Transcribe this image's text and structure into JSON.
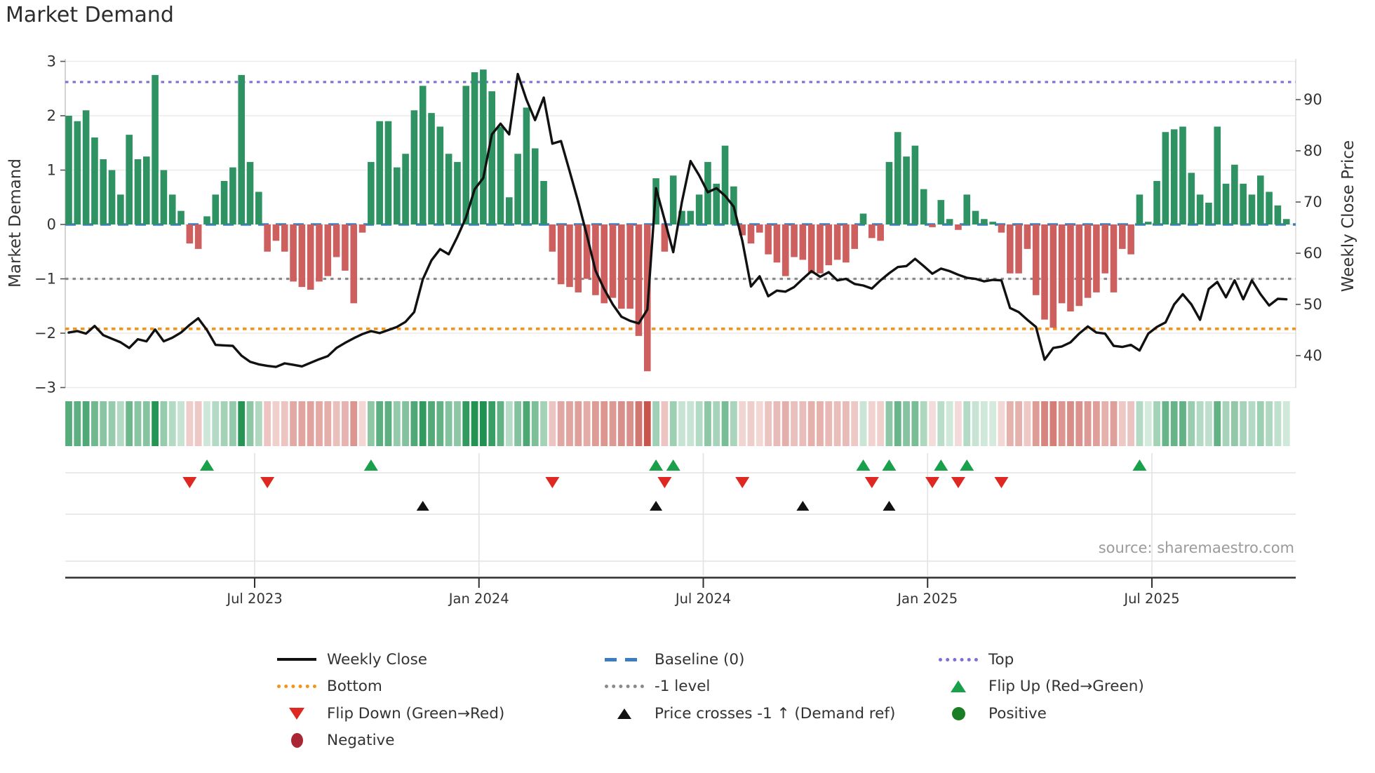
{
  "title": "Market Demand",
  "source": "source: sharemaestro.com",
  "axes": {
    "left_label": "Market Demand",
    "right_label": "Weekly Close Price",
    "left_ticks": [
      "3",
      "2",
      "1",
      "0",
      "−1",
      "−2",
      "−3"
    ],
    "right_ticks": [
      "90",
      "80",
      "70",
      "60",
      "50",
      "40"
    ],
    "x_ticks": [
      "Jul 2023",
      "Jan 2024",
      "Jul 2024",
      "Jan 2025",
      "Jul 2025"
    ]
  },
  "colors": {
    "bar_positive": "#2f9263",
    "bar_negative": "#cd5f5f",
    "price_line": "#111111",
    "top_level": "#7a70d8",
    "baseline": "#3a7ebf",
    "minus1_level": "#8a8a8a",
    "bottom_level": "#f59318",
    "flip_up_marker": "#18a04a",
    "flip_down_marker": "#e02822",
    "price_cross_marker": "#111111",
    "heat_green": "#1f9150",
    "heat_red": "#c44d44"
  },
  "chart_data": {
    "type": "bar+line",
    "frequency": "weekly",
    "title": "Market Demand",
    "demand_axis": {
      "label": "Market Demand",
      "range": [
        -3,
        3
      ],
      "grid": true
    },
    "price_axis": {
      "label": "Weekly Close Price",
      "ticks": [
        90,
        80,
        70,
        60,
        50,
        40
      ]
    },
    "x_tick_labels": [
      "Jul 2023",
      "Jan 2024",
      "Jul 2024",
      "Jan 2025",
      "Jul 2025"
    ],
    "reference_levels": {
      "top": 2.62,
      "baseline": 0,
      "minus_1": -1,
      "bottom": -1.92
    },
    "series": [
      {
        "name": "Market Demand",
        "type": "bar",
        "values": [
          2.0,
          1.9,
          2.1,
          1.6,
          1.2,
          1.0,
          0.55,
          1.65,
          1.2,
          1.25,
          2.75,
          1.0,
          0.55,
          0.25,
          -0.35,
          -0.45,
          0.15,
          0.55,
          0.8,
          1.05,
          2.75,
          1.15,
          0.6,
          -0.5,
          -0.3,
          -0.5,
          -1.05,
          -1.15,
          -1.2,
          -1.05,
          -0.95,
          -0.6,
          -0.85,
          -1.45,
          -0.15,
          1.15,
          1.9,
          1.9,
          1.05,
          1.3,
          2.1,
          2.55,
          2.05,
          1.8,
          1.3,
          1.15,
          2.55,
          2.8,
          2.85,
          2.45,
          1.8,
          0.5,
          1.3,
          2.15,
          1.4,
          0.8,
          -0.5,
          -1.1,
          -1.15,
          -1.25,
          -1.0,
          -1.3,
          -1.45,
          -1.35,
          -1.55,
          -1.55,
          -2.05,
          -2.7,
          0.85,
          -0.5,
          0.9,
          0.25,
          0.25,
          0.55,
          1.15,
          0.75,
          1.45,
          0.7,
          -0.2,
          -0.35,
          -0.15,
          -0.55,
          -0.7,
          -0.95,
          -0.6,
          -0.65,
          -0.9,
          -0.9,
          -0.75,
          -0.65,
          -0.7,
          -0.45,
          0.2,
          -0.25,
          -0.3,
          1.15,
          1.7,
          1.25,
          1.45,
          0.65,
          -0.05,
          0.45,
          0.1,
          -0.1,
          0.55,
          0.25,
          0.1,
          0.05,
          -0.15,
          -0.9,
          -0.9,
          -0.45,
          -1.3,
          -1.75,
          -1.9,
          -1.45,
          -1.6,
          -1.5,
          -1.35,
          -1.25,
          -0.9,
          -1.25,
          -0.45,
          -0.55,
          0.55,
          0.05,
          0.8,
          1.7,
          1.75,
          1.8,
          0.95,
          0.55,
          0.4,
          1.8,
          0.75,
          1.1,
          0.75,
          0.55,
          0.9,
          0.6,
          0.35,
          0.1
        ]
      },
      {
        "name": "Weekly Close",
        "type": "line",
        "values": [
          44.5,
          44.8,
          44.3,
          45.8,
          44.0,
          43.3,
          42.6,
          41.5,
          43.2,
          42.8,
          45.1,
          42.8,
          43.5,
          44.5,
          46.0,
          47.3,
          45.0,
          42.1,
          42.0,
          41.9,
          40.0,
          38.8,
          38.3,
          38.0,
          37.8,
          38.5,
          38.2,
          37.9,
          38.6,
          39.3,
          39.9,
          41.5,
          42.5,
          43.4,
          44.2,
          44.8,
          44.4,
          45.0,
          45.6,
          46.6,
          48.5,
          54.9,
          58.6,
          60.8,
          59.8,
          63.2,
          67.0,
          72.5,
          74.7,
          83.2,
          85.3,
          83.2,
          95.0,
          90.0,
          86.0,
          90.4,
          81.4,
          81.9,
          76.0,
          70.0,
          63.5,
          56.6,
          53.0,
          50.0,
          47.6,
          46.8,
          46.3,
          49.0,
          72.7,
          66.5,
          60.2,
          70.0,
          78.0,
          75.2,
          71.9,
          72.7,
          71.2,
          69.1,
          62.4,
          53.5,
          55.5,
          51.6,
          52.7,
          52.5,
          53.4,
          55.0,
          56.5,
          55.4,
          56.3,
          54.7,
          55.0,
          54.0,
          53.7,
          53.1,
          54.7,
          56.1,
          57.3,
          57.5,
          58.9,
          57.5,
          56.0,
          57.0,
          56.5,
          55.8,
          55.2,
          55.0,
          54.5,
          54.8,
          54.7,
          49.3,
          48.5,
          47.0,
          45.6,
          39.2,
          41.5,
          41.8,
          42.6,
          44.3,
          45.7,
          44.5,
          44.3,
          41.9,
          41.7,
          42.1,
          41.0,
          44.3,
          45.6,
          46.5,
          50.0,
          52.0,
          50.0,
          47.0,
          53.0,
          54.4,
          51.4,
          54.7,
          51.0,
          54.7,
          52.0,
          49.8,
          51.1,
          51.0
        ]
      }
    ],
    "markers": {
      "flip_up_week_indices": [
        16,
        35,
        68,
        70,
        92,
        95,
        101,
        104,
        124
      ],
      "flip_down_week_indices": [
        14,
        23,
        56,
        69,
        78,
        93,
        100,
        103,
        108
      ],
      "price_cross_week_indices": [
        41,
        68,
        85,
        95
      ]
    },
    "heatmap": "green/red strip, intensity proportional to |demand| per week",
    "legend_position": "bottom, 3 columns"
  },
  "legend": {
    "columns": [
      {
        "items": [
          {
            "label": "Weekly Close",
            "style": "line-solid-black"
          },
          {
            "label": "Bottom",
            "style": "line-dotted-orange"
          },
          {
            "label": "Flip Down (Green→Red)",
            "style": "tri-down-red"
          },
          {
            "label": "Negative",
            "style": "circle-dark-red"
          }
        ]
      },
      {
        "items": [
          {
            "label": "Baseline (0)",
            "style": "line-dashed-blue"
          },
          {
            "label": "-1 level",
            "style": "line-dotted-gray"
          },
          {
            "label": "Price crosses -1 ↑ (Demand ref)",
            "style": "tri-up-black"
          }
        ]
      },
      {
        "items": [
          {
            "label": "Top",
            "style": "line-dotted-purple"
          },
          {
            "label": "Flip Up (Red→Green)",
            "style": "tri-up-green"
          },
          {
            "label": "Positive",
            "style": "circle-green"
          }
        ]
      }
    ]
  }
}
